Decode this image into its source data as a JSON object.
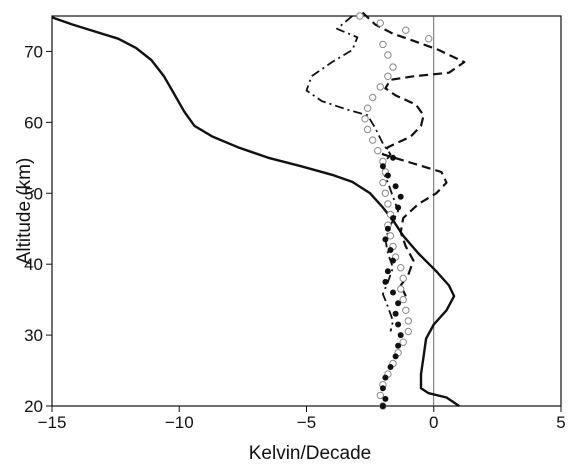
{
  "chart_data": {
    "type": "line",
    "title": "",
    "xlabel": "Kelvin/Decade",
    "ylabel": "Altitude (km)",
    "xlim": [
      -15,
      5
    ],
    "ylim": [
      20,
      75
    ],
    "x_ticks": [
      -15,
      -10,
      -5,
      0,
      5
    ],
    "y_ticks": [
      20,
      30,
      40,
      50,
      60,
      70
    ],
    "x_tick_labels": [
      "−15",
      "−10",
      "−5",
      "0",
      "5"
    ],
    "y_tick_labels": [
      "20",
      "30",
      "40",
      "50",
      "60",
      "70"
    ],
    "grid": false,
    "reference_line_x": 0,
    "legend": "none",
    "series": [
      {
        "style": "solid",
        "color": "#111111",
        "points": [
          [
            -15.0,
            74.8
          ],
          [
            -14.2,
            73.8
          ],
          [
            -13.3,
            72.8
          ],
          [
            -12.4,
            71.8
          ],
          [
            -11.7,
            70.5
          ],
          [
            -11.1,
            68.8
          ],
          [
            -10.6,
            66.5
          ],
          [
            -10.2,
            64.0
          ],
          [
            -9.8,
            61.5
          ],
          [
            -9.4,
            59.5
          ],
          [
            -8.7,
            58.0
          ],
          [
            -7.7,
            56.5
          ],
          [
            -6.5,
            55.0
          ],
          [
            -5.2,
            53.8
          ],
          [
            -4.0,
            52.6
          ],
          [
            -3.2,
            51.6
          ],
          [
            -2.5,
            50.0
          ],
          [
            -2.0,
            48.0
          ],
          [
            -1.6,
            46.2
          ],
          [
            -1.2,
            44.0
          ],
          [
            -0.6,
            41.5
          ],
          [
            0.1,
            39.0
          ],
          [
            0.6,
            37.0
          ],
          [
            0.8,
            35.5
          ],
          [
            0.5,
            33.5
          ],
          [
            0.0,
            31.5
          ],
          [
            -0.3,
            29.5
          ],
          [
            -0.4,
            27.0
          ],
          [
            -0.5,
            24.5
          ],
          [
            -0.5,
            22.5
          ],
          [
            -0.2,
            21.8
          ],
          [
            0.5,
            21.2
          ],
          [
            1.0,
            20.0
          ]
        ]
      },
      {
        "style": "dashed",
        "color": "#111111",
        "points": [
          [
            -2.8,
            75.5
          ],
          [
            -2.3,
            73.8
          ],
          [
            -1.6,
            72.5
          ],
          [
            -0.8,
            71.5
          ],
          [
            0.2,
            70.2
          ],
          [
            1.2,
            68.5
          ],
          [
            0.6,
            67.0
          ],
          [
            -0.8,
            66.5
          ],
          [
            -1.7,
            66.0
          ],
          [
            -1.9,
            64.8
          ],
          [
            -1.5,
            63.8
          ],
          [
            -0.7,
            62.5
          ],
          [
            -0.4,
            61.0
          ],
          [
            -0.5,
            59.5
          ],
          [
            -0.9,
            58.0
          ],
          [
            -1.8,
            56.5
          ],
          [
            -2.0,
            55.5
          ],
          [
            -0.8,
            54.2
          ],
          [
            0.3,
            53.0
          ],
          [
            0.5,
            51.5
          ],
          [
            0.1,
            50.0
          ],
          [
            -0.6,
            48.5
          ],
          [
            -1.2,
            46.5
          ],
          [
            -1.3,
            44.5
          ],
          [
            -1.1,
            42.5
          ],
          [
            -0.8,
            40.5
          ],
          [
            -1.0,
            38.5
          ],
          [
            -1.3,
            37.0
          ],
          [
            -1.1,
            35.5
          ]
        ]
      },
      {
        "style": "dash-dot",
        "color": "#111111",
        "points": [
          [
            -3.2,
            75.0
          ],
          [
            -3.8,
            73.2
          ],
          [
            -3.0,
            72.0
          ],
          [
            -3.2,
            70.2
          ],
          [
            -4.0,
            68.5
          ],
          [
            -4.8,
            66.5
          ],
          [
            -5.0,
            64.5
          ],
          [
            -4.4,
            63.0
          ],
          [
            -3.4,
            61.8
          ],
          [
            -2.6,
            61.0
          ],
          [
            -2.3,
            59.2
          ],
          [
            -2.0,
            57.0
          ],
          [
            -1.7,
            55.5
          ],
          [
            -1.9,
            54.5
          ],
          [
            -2.0,
            53.0
          ],
          [
            -1.8,
            51.5
          ],
          [
            -1.6,
            49.5
          ],
          [
            -1.4,
            47.5
          ],
          [
            -1.7,
            45.5
          ],
          [
            -1.9,
            43.5
          ],
          [
            -1.8,
            41.5
          ],
          [
            -1.6,
            39.5
          ],
          [
            -1.8,
            37.5
          ],
          [
            -2.0,
            35.8
          ],
          [
            -1.8,
            34.0
          ],
          [
            -1.6,
            32.0
          ],
          [
            -1.7,
            30.5
          ]
        ]
      },
      {
        "style": "open-circles",
        "color": "#888888",
        "points": [
          [
            -2.9,
            75.0
          ],
          [
            -2.1,
            74.0
          ],
          [
            -1.1,
            73.0
          ],
          [
            -0.2,
            71.8
          ],
          [
            -2.0,
            71.0
          ],
          [
            -1.8,
            69.5
          ],
          [
            -1.6,
            67.8
          ],
          [
            -1.8,
            66.5
          ],
          [
            -2.1,
            65.0
          ],
          [
            -2.4,
            63.5
          ],
          [
            -2.6,
            62.0
          ],
          [
            -2.7,
            60.5
          ],
          [
            -2.6,
            59.0
          ],
          [
            -2.4,
            57.5
          ],
          [
            -2.2,
            56.0
          ],
          [
            -2.0,
            54.5
          ],
          [
            -1.9,
            53.0
          ],
          [
            -2.0,
            51.5
          ],
          [
            -1.9,
            50.0
          ],
          [
            -1.8,
            48.5
          ],
          [
            -1.7,
            47.0
          ],
          [
            -1.8,
            45.5
          ],
          [
            -1.7,
            44.0
          ],
          [
            -1.6,
            42.5
          ],
          [
            -1.5,
            41.0
          ],
          [
            -1.3,
            39.5
          ],
          [
            -1.2,
            38.0
          ],
          [
            -1.3,
            36.5
          ],
          [
            -1.2,
            35.0
          ],
          [
            -1.1,
            33.5
          ],
          [
            -1.0,
            32.0
          ],
          [
            -1.0,
            30.5
          ],
          [
            -1.2,
            29.0
          ],
          [
            -1.4,
            27.5
          ],
          [
            -1.6,
            26.0
          ],
          [
            -1.8,
            24.5
          ],
          [
            -2.0,
            23.0
          ],
          [
            -2.1,
            21.5
          ],
          [
            -2.0,
            20.0
          ]
        ]
      },
      {
        "style": "filled-circles",
        "color": "#111111",
        "points": [
          [
            -1.6,
            55.0
          ],
          [
            -2.0,
            53.8
          ],
          [
            -1.8,
            52.5
          ],
          [
            -1.5,
            51.0
          ],
          [
            -1.3,
            49.5
          ],
          [
            -1.4,
            48.0
          ],
          [
            -1.6,
            46.5
          ],
          [
            -1.8,
            45.0
          ],
          [
            -1.9,
            43.5
          ],
          [
            -1.7,
            42.0
          ],
          [
            -1.6,
            40.5
          ],
          [
            -1.8,
            39.0
          ],
          [
            -1.9,
            37.5
          ],
          [
            -1.6,
            36.0
          ],
          [
            -1.4,
            34.5
          ],
          [
            -1.5,
            33.0
          ],
          [
            -1.4,
            31.5
          ],
          [
            -1.3,
            30.0
          ],
          [
            -1.4,
            28.5
          ],
          [
            -1.5,
            27.0
          ],
          [
            -1.7,
            25.5
          ],
          [
            -1.9,
            24.0
          ],
          [
            -2.0,
            22.5
          ],
          [
            -1.9,
            21.0
          ],
          [
            -2.0,
            20.0
          ]
        ]
      }
    ]
  }
}
